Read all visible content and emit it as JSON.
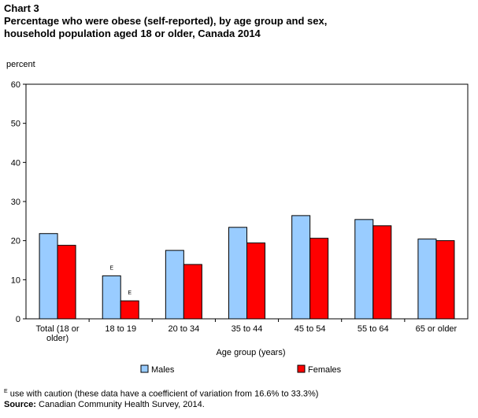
{
  "title": {
    "chart_number": "Chart 3",
    "line1": "Percentage who were obese (self-reported), by age group and sex,",
    "line2": "household population aged 18 or older, Canada 2014"
  },
  "colors": {
    "males": "#99ccff",
    "females": "#ff0000",
    "outline": "#000000"
  },
  "chart_data": {
    "type": "bar",
    "title": "Percentage who were obese (self-reported), by age group and sex, household population aged 18 or older, Canada 2014",
    "ylabel": "percent",
    "xlabel": "Age group (years)",
    "ylim": [
      0,
      60
    ],
    "yticks": [
      0,
      10,
      20,
      30,
      40,
      50,
      60
    ],
    "grid": false,
    "legend": "bottom",
    "categories": [
      [
        "Total (18 or",
        "older)"
      ],
      [
        "18 to 19"
      ],
      [
        "20 to 34"
      ],
      [
        "35 to 44"
      ],
      [
        "45 to 54"
      ],
      [
        "55 to 64"
      ],
      [
        "65 or older"
      ]
    ],
    "series": [
      {
        "name": "Males",
        "values": [
          21.8,
          11.0,
          17.5,
          23.4,
          26.4,
          25.4,
          20.4
        ],
        "flags": [
          "",
          "E",
          "",
          "",
          "",
          "",
          ""
        ]
      },
      {
        "name": "Females",
        "values": [
          18.8,
          4.6,
          13.9,
          19.4,
          20.6,
          23.8,
          20.0
        ],
        "flags": [
          "",
          "E",
          "",
          "",
          "",
          "",
          ""
        ]
      }
    ]
  },
  "footnote": {
    "flag": "E",
    "caution_text": " use with caution (these data have a coefficient of variation from 16.6% to 33.3%)",
    "source_label": "Source:",
    "source_text": " Canadian Community Health Survey, 2014."
  }
}
